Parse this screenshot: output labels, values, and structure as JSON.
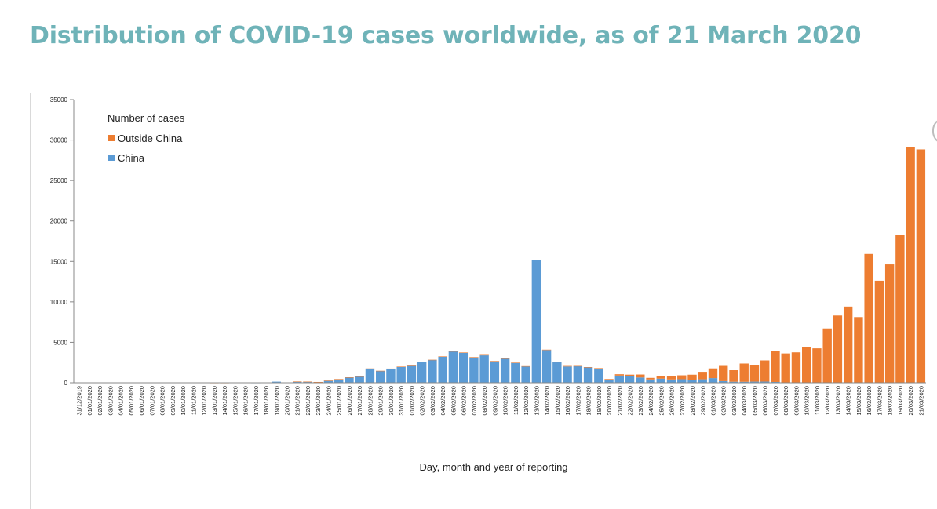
{
  "page": {
    "title": "Distribution of COVID-19 cases worldwide, as of 21 March 2020"
  },
  "chart_data": {
    "type": "bar",
    "stacked": true,
    "title": "Distribution of COVID-19 cases worldwide, as of 21 March 2020",
    "xlabel": "Day, month and year of reporting",
    "ylabel": "",
    "ylim": [
      0,
      35000
    ],
    "yticks": [
      0,
      5000,
      10000,
      15000,
      20000,
      25000,
      30000,
      35000
    ],
    "legend": {
      "title": "Number of cases",
      "position": "top-left"
    },
    "colors": {
      "outside_china": "#ed7d31",
      "china": "#5b9bd5"
    },
    "categories": [
      "31/12/2019",
      "01/01/2020",
      "02/01/2020",
      "03/01/2020",
      "04/01/2020",
      "05/01/2020",
      "06/01/2020",
      "07/01/2020",
      "08/01/2020",
      "09/01/2020",
      "10/01/2020",
      "11/01/2020",
      "12/01/2020",
      "13/01/2020",
      "14/01/2020",
      "15/01/2020",
      "16/01/2020",
      "17/01/2020",
      "18/01/2020",
      "19/01/2020",
      "20/01/2020",
      "21/01/2020",
      "22/01/2020",
      "23/01/2020",
      "24/01/2020",
      "25/01/2020",
      "26/01/2020",
      "27/01/2020",
      "28/01/2020",
      "29/01/2020",
      "30/01/2020",
      "31/01/2020",
      "01/02/2020",
      "02/02/2020",
      "03/02/2020",
      "04/02/2020",
      "05/02/2020",
      "06/02/2020",
      "07/02/2020",
      "08/02/2020",
      "09/02/2020",
      "10/02/2020",
      "11/02/2020",
      "12/02/2020",
      "13/02/2020",
      "14/02/2020",
      "15/02/2020",
      "16/02/2020",
      "17/02/2020",
      "18/02/2020",
      "19/02/2020",
      "20/02/2020",
      "21/02/2020",
      "22/02/2020",
      "23/02/2020",
      "24/02/2020",
      "25/02/2020",
      "26/02/2020",
      "27/02/2020",
      "28/02/2020",
      "29/02/2020",
      "01/03/2020",
      "02/03/2020",
      "03/03/2020",
      "04/03/2020",
      "05/03/2020",
      "06/03/2020",
      "07/03/2020",
      "08/03/2020",
      "09/03/2020",
      "10/03/2020",
      "11/03/2020",
      "12/03/2020",
      "13/03/2020",
      "14/03/2020",
      "15/03/2020",
      "16/03/2020",
      "17/03/2020",
      "18/03/2020",
      "19/03/2020",
      "20/03/2020",
      "21/03/2020"
    ],
    "series": [
      {
        "name": "China",
        "values": [
          27,
          0,
          0,
          17,
          0,
          15,
          0,
          0,
          0,
          0,
          0,
          0,
          0,
          0,
          0,
          0,
          0,
          4,
          17,
          136,
          19,
          151,
          140,
          97,
          259,
          441,
          665,
          787,
          1753,
          1466,
          1737,
          1982,
          2102,
          2590,
          2829,
          3235,
          3887,
          3694,
          3143,
          3385,
          2652,
          2973,
          2467,
          2015,
          15152,
          4050,
          2538,
          2007,
          2052,
          1890,
          1750,
          394,
          889,
          823,
          648,
          409,
          508,
          406,
          433,
          327,
          427,
          573,
          202,
          125,
          119,
          139,
          143,
          99,
          44,
          40,
          19,
          24,
          15,
          11,
          20,
          16,
          21,
          13,
          34,
          39,
          41,
          46
        ]
      },
      {
        "name": "Outside China",
        "values": [
          0,
          0,
          0,
          0,
          0,
          0,
          0,
          0,
          0,
          0,
          0,
          0,
          0,
          1,
          1,
          0,
          0,
          0,
          0,
          0,
          1,
          2,
          3,
          2,
          5,
          8,
          4,
          7,
          9,
          12,
          14,
          15,
          13,
          14,
          13,
          26,
          20,
          50,
          28,
          55,
          38,
          45,
          22,
          38,
          40,
          43,
          38,
          68,
          28,
          47,
          54,
          70,
          161,
          175,
          367,
          194,
          270,
          384,
          485,
          666,
          922,
          1200,
          1880,
          1426,
          2258,
          2007,
          2620,
          3800,
          3580,
          3720,
          4390,
          4230,
          6700,
          8300,
          9400,
          8100,
          15900,
          12600,
          14600,
          18200,
          29100,
          28800
        ]
      }
    ]
  }
}
